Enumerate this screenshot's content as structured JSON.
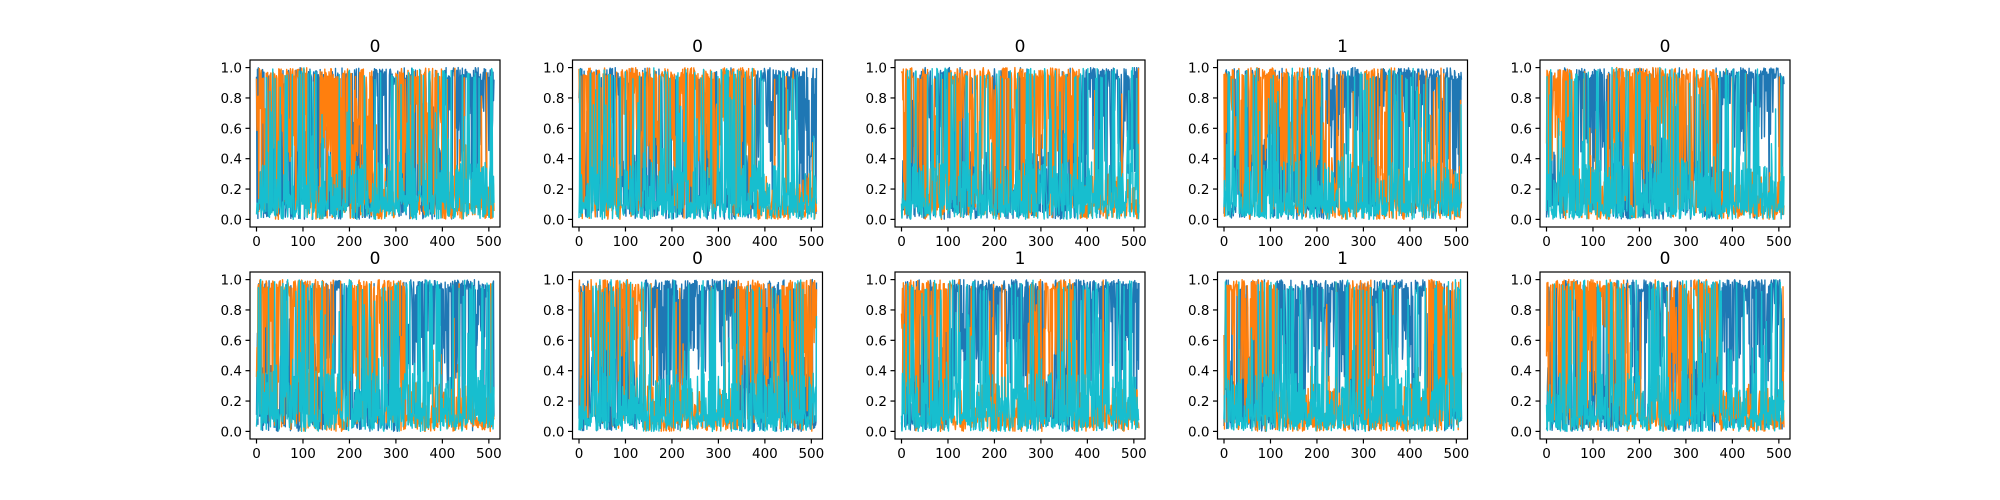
{
  "chart_data": [
    {
      "type": "line",
      "title": "0",
      "xlim": [
        -14,
        524
      ],
      "ylim": [
        -0.05,
        1.05
      ],
      "xticks": [
        "0",
        "100",
        "200",
        "300",
        "400",
        "500"
      ],
      "yticks": [
        "0.0",
        "0.2",
        "0.4",
        "0.6",
        "0.8",
        "1.0"
      ],
      "n_points": 512,
      "series": [
        {
          "color": "#1f77b4",
          "regime": [
            [
              0,
              110,
              0.3
            ],
            [
              110,
              135,
              0.85
            ],
            [
              135,
              250,
              0.3
            ],
            [
              250,
              300,
              0.85
            ],
            [
              300,
              400,
              0.3
            ],
            [
              400,
              512,
              0.9
            ]
          ]
        },
        {
          "color": "#ff7f0e",
          "regime": [
            [
              0,
              110,
              0.8
            ],
            [
              110,
              135,
              0.2
            ],
            [
              135,
              250,
              0.75
            ],
            [
              250,
              300,
              0.1
            ],
            [
              300,
              400,
              0.7
            ],
            [
              400,
              512,
              0.05
            ]
          ]
        },
        {
          "color": "#17becf",
          "regime": [
            [
              0,
              512,
              0.15
            ]
          ]
        }
      ]
    },
    {
      "type": "line",
      "title": "0",
      "xlim": [
        -14,
        524
      ],
      "ylim": [
        -0.05,
        1.05
      ],
      "xticks": [
        "0",
        "100",
        "200",
        "300",
        "400",
        "500"
      ],
      "yticks": [
        "0.0",
        "0.2",
        "0.4",
        "0.6",
        "0.8",
        "1.0"
      ],
      "n_points": 512,
      "series": [
        {
          "color": "#1f77b4",
          "regime": [
            [
              0,
              60,
              0.4
            ],
            [
              60,
              90,
              0.85
            ],
            [
              90,
              380,
              0.3
            ],
            [
              380,
              512,
              0.9
            ]
          ]
        },
        {
          "color": "#ff7f0e",
          "regime": [
            [
              0,
              60,
              0.7
            ],
            [
              60,
              90,
              0.2
            ],
            [
              90,
              380,
              0.75
            ],
            [
              380,
              512,
              0.03
            ]
          ]
        },
        {
          "color": "#17becf",
          "regime": [
            [
              0,
              512,
              0.15
            ]
          ]
        }
      ]
    },
    {
      "type": "line",
      "title": "0",
      "xlim": [
        -14,
        524
      ],
      "ylim": [
        -0.05,
        1.05
      ],
      "xticks": [
        "0",
        "100",
        "200",
        "300",
        "400",
        "500"
      ],
      "yticks": [
        "0.0",
        "0.2",
        "0.4",
        "0.6",
        "0.8",
        "1.0"
      ],
      "n_points": 512,
      "series": [
        {
          "color": "#1f77b4",
          "regime": [
            [
              0,
              50,
              0.3
            ],
            [
              50,
              100,
              0.85
            ],
            [
              100,
              385,
              0.25
            ],
            [
              385,
              512,
              0.9
            ]
          ]
        },
        {
          "color": "#ff7f0e",
          "regime": [
            [
              0,
              50,
              0.75
            ],
            [
              50,
              100,
              0.15
            ],
            [
              100,
              385,
              0.8
            ],
            [
              385,
              512,
              0.03
            ]
          ]
        },
        {
          "color": "#17becf",
          "regime": [
            [
              0,
              512,
              0.15
            ]
          ]
        }
      ]
    },
    {
      "type": "line",
      "title": "1",
      "xlim": [
        -14,
        524
      ],
      "ylim": [
        -0.05,
        1.05
      ],
      "xticks": [
        "0",
        "100",
        "200",
        "300",
        "400",
        "500"
      ],
      "yticks": [
        "0.0",
        "0.2",
        "0.4",
        "0.6",
        "0.8",
        "1.0"
      ],
      "n_points": 512,
      "series": [
        {
          "color": "#1f77b4",
          "regime": [
            [
              0,
              220,
              0.3
            ],
            [
              220,
              300,
              0.85
            ],
            [
              300,
              325,
              0.3
            ],
            [
              325,
              512,
              0.88
            ]
          ]
        },
        {
          "color": "#ff7f0e",
          "regime": [
            [
              0,
              220,
              0.75
            ],
            [
              220,
              300,
              0.15
            ],
            [
              300,
              325,
              0.7
            ],
            [
              325,
              512,
              0.1
            ]
          ]
        },
        {
          "color": "#17becf",
          "regime": [
            [
              0,
              512,
              0.15
            ]
          ]
        }
      ]
    },
    {
      "type": "line",
      "title": "0",
      "xlim": [
        -14,
        524
      ],
      "ylim": [
        -0.05,
        1.05
      ],
      "xticks": [
        "0",
        "100",
        "200",
        "300",
        "400",
        "500"
      ],
      "yticks": [
        "0.0",
        "0.2",
        "0.4",
        "0.6",
        "0.8",
        "1.0"
      ],
      "n_points": 512,
      "series": [
        {
          "color": "#1f77b4",
          "regime": [
            [
              0,
              60,
              0.3
            ],
            [
              60,
              140,
              0.85
            ],
            [
              140,
              370,
              0.25
            ],
            [
              370,
              512,
              0.9
            ]
          ]
        },
        {
          "color": "#ff7f0e",
          "regime": [
            [
              0,
              60,
              0.7
            ],
            [
              60,
              140,
              0.1
            ],
            [
              140,
              370,
              0.8
            ],
            [
              370,
              512,
              0.05
            ]
          ]
        },
        {
          "color": "#17becf",
          "regime": [
            [
              0,
              512,
              0.15
            ]
          ]
        }
      ]
    },
    {
      "type": "line",
      "title": "0",
      "xlim": [
        -14,
        524
      ],
      "ylim": [
        -0.05,
        1.05
      ],
      "xticks": [
        "0",
        "100",
        "200",
        "300",
        "400",
        "500"
      ],
      "yticks": [
        "0.0",
        "0.2",
        "0.4",
        "0.6",
        "0.8",
        "1.0"
      ],
      "n_points": 512,
      "series": [
        {
          "color": "#1f77b4",
          "regime": [
            [
              0,
              150,
              0.3
            ],
            [
              150,
              200,
              0.85
            ],
            [
              200,
              320,
              0.3
            ],
            [
              320,
              512,
              0.88
            ]
          ]
        },
        {
          "color": "#ff7f0e",
          "regime": [
            [
              0,
              150,
              0.75
            ],
            [
              150,
              200,
              0.15
            ],
            [
              200,
              320,
              0.7
            ],
            [
              320,
              512,
              0.05
            ]
          ]
        },
        {
          "color": "#17becf",
          "regime": [
            [
              0,
              512,
              0.2
            ]
          ]
        }
      ]
    },
    {
      "type": "line",
      "title": "0",
      "xlim": [
        -14,
        524
      ],
      "ylim": [
        -0.05,
        1.05
      ],
      "xticks": [
        "0",
        "100",
        "200",
        "300",
        "400",
        "500"
      ],
      "yticks": [
        "0.0",
        "0.2",
        "0.4",
        "0.6",
        "0.8",
        "1.0"
      ],
      "n_points": 512,
      "series": [
        {
          "color": "#1f77b4",
          "regime": [
            [
              0,
              140,
              0.3
            ],
            [
              140,
              340,
              0.88
            ],
            [
              340,
              512,
              0.35
            ]
          ]
        },
        {
          "color": "#ff7f0e",
          "regime": [
            [
              0,
              140,
              0.75
            ],
            [
              140,
              340,
              0.05
            ],
            [
              340,
              512,
              0.75
            ]
          ]
        },
        {
          "color": "#17becf",
          "regime": [
            [
              0,
              512,
              0.15
            ]
          ]
        }
      ]
    },
    {
      "type": "line",
      "title": "1",
      "xlim": [
        -14,
        524
      ],
      "ylim": [
        -0.05,
        1.05
      ],
      "xticks": [
        "0",
        "100",
        "200",
        "300",
        "400",
        "500"
      ],
      "yticks": [
        "0.0",
        "0.2",
        "0.4",
        "0.6",
        "0.8",
        "1.0"
      ],
      "n_points": 512,
      "series": [
        {
          "color": "#1f77b4",
          "regime": [
            [
              0,
              110,
              0.3
            ],
            [
              110,
              270,
              0.88
            ],
            [
              270,
              370,
              0.35
            ],
            [
              370,
              512,
              0.9
            ]
          ]
        },
        {
          "color": "#ff7f0e",
          "regime": [
            [
              0,
              110,
              0.75
            ],
            [
              110,
              270,
              0.05
            ],
            [
              270,
              370,
              0.7
            ],
            [
              370,
              512,
              0.04
            ]
          ]
        },
        {
          "color": "#17becf",
          "regime": [
            [
              0,
              512,
              0.15
            ]
          ]
        }
      ]
    },
    {
      "type": "line",
      "title": "1",
      "xlim": [
        -14,
        524
      ],
      "ylim": [
        -0.05,
        1.05
      ],
      "xticks": [
        "0",
        "100",
        "200",
        "300",
        "400",
        "500"
      ],
      "yticks": [
        "0.0",
        "0.2",
        "0.4",
        "0.6",
        "0.8",
        "1.0"
      ],
      "n_points": 512,
      "series": [
        {
          "color": "#1f77b4",
          "regime": [
            [
              0,
              110,
              0.3
            ],
            [
              110,
              270,
              0.88
            ],
            [
              270,
              320,
              0.35
            ],
            [
              320,
              440,
              0.9
            ],
            [
              440,
              512,
              0.35
            ]
          ]
        },
        {
          "color": "#ff7f0e",
          "regime": [
            [
              0,
              110,
              0.75
            ],
            [
              110,
              270,
              0.05
            ],
            [
              270,
              320,
              0.7
            ],
            [
              320,
              440,
              0.05
            ],
            [
              440,
              512,
              0.7
            ]
          ]
        },
        {
          "color": "#17becf",
          "regime": [
            [
              0,
              512,
              0.15
            ]
          ]
        }
      ]
    },
    {
      "type": "line",
      "title": "0",
      "xlim": [
        -14,
        524
      ],
      "ylim": [
        -0.05,
        1.05
      ],
      "xticks": [
        "0",
        "100",
        "200",
        "300",
        "400",
        "500"
      ],
      "yticks": [
        "0.0",
        "0.2",
        "0.4",
        "0.6",
        "0.8",
        "1.0"
      ],
      "n_points": 512,
      "series": [
        {
          "color": "#1f77b4",
          "regime": [
            [
              0,
              170,
              0.3
            ],
            [
              170,
              260,
              0.88
            ],
            [
              260,
              370,
              0.3
            ],
            [
              370,
              512,
              0.9
            ]
          ]
        },
        {
          "color": "#ff7f0e",
          "regime": [
            [
              0,
              170,
              0.75
            ],
            [
              170,
              260,
              0.05
            ],
            [
              260,
              370,
              0.75
            ],
            [
              370,
              512,
              0.05
            ]
          ]
        },
        {
          "color": "#17becf",
          "regime": [
            [
              0,
              512,
              0.15
            ]
          ]
        }
      ]
    }
  ]
}
